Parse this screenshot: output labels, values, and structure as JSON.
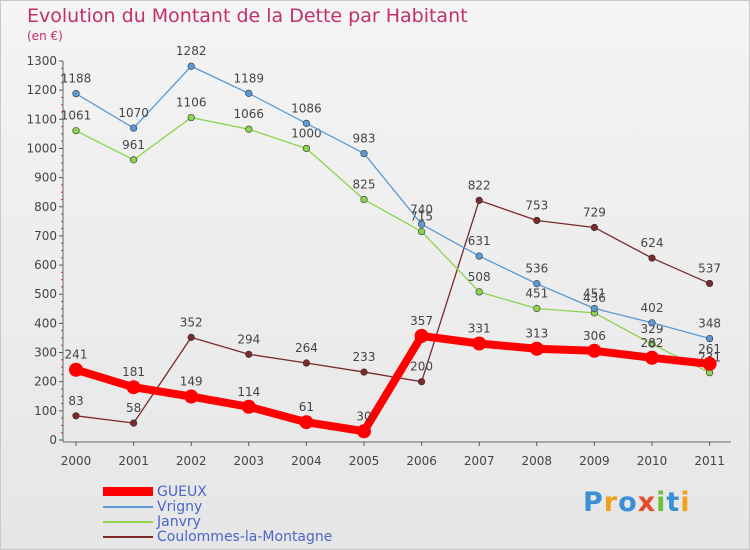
{
  "title": "Evolution du Montant de la Dette par Habitant",
  "unit": "(en €)",
  "logo": "Proxiti",
  "chart_data": {
    "type": "line",
    "x": [
      "2000",
      "2001",
      "2002",
      "2003",
      "2004",
      "2005",
      "2006",
      "2007",
      "2008",
      "2009",
      "2010",
      "2011"
    ],
    "ylim": [
      0,
      1300
    ],
    "yticks": [
      0,
      100,
      200,
      300,
      400,
      500,
      600,
      700,
      800,
      900,
      1000,
      1100,
      1200,
      1300
    ],
    "grid": false,
    "legend_placement": "bottom-left",
    "series": [
      {
        "name": "GUEUX",
        "color": "#ff0000",
        "values": [
          241,
          181,
          149,
          114,
          61,
          30,
          357,
          331,
          313,
          306,
          282,
          261
        ]
      },
      {
        "name": "Vrigny",
        "color": "#5b9bd5",
        "values": [
          1188,
          1070,
          1282,
          1189,
          1086,
          983,
          740,
          631,
          536,
          451,
          402,
          348
        ]
      },
      {
        "name": "Janvry",
        "color": "#8dd44e",
        "values": [
          1061,
          961,
          1106,
          1066,
          1000,
          825,
          715,
          508,
          451,
          436,
          329,
          231
        ]
      },
      {
        "name": "Coulommes-la-Montagne",
        "color": "#7a2a2a",
        "values": [
          83,
          58,
          352,
          294,
          264,
          233,
          200,
          822,
          753,
          729,
          624,
          537
        ]
      }
    ]
  }
}
